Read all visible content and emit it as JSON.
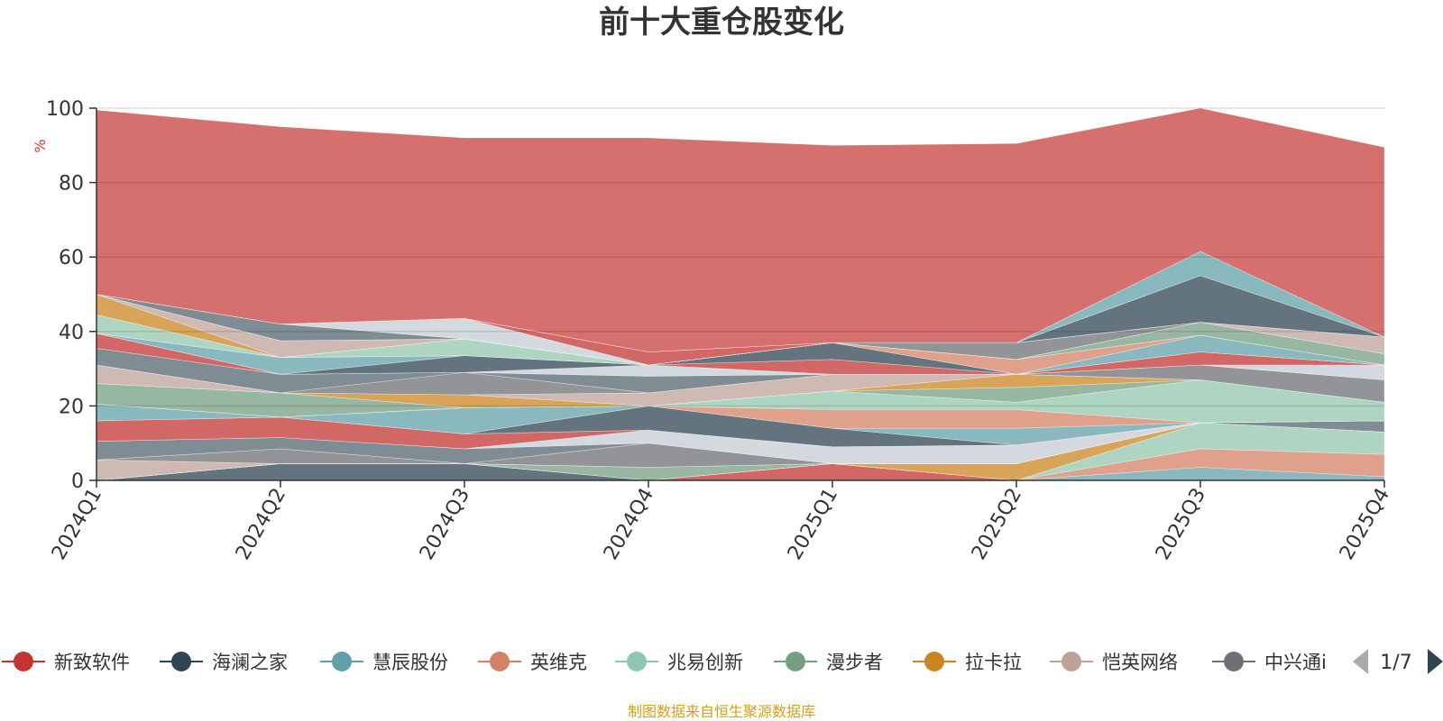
{
  "chart_data": {
    "type": "area",
    "title": "前十大重仓股变化",
    "ylabel": "%",
    "ylim": [
      0,
      100
    ],
    "yticks": [
      0,
      20,
      40,
      60,
      80,
      100
    ],
    "categories": [
      "2024Q1",
      "2024Q2",
      "2024Q3",
      "2024Q4",
      "2025Q1",
      "2025Q2",
      "2025Q3",
      "2025Q4"
    ],
    "grid": true,
    "legend_position": "bottom",
    "legend_page": "1/7",
    "series": [
      {
        "name": "新致软件",
        "values": [
          0,
          0,
          0,
          0,
          4.5,
          0,
          0,
          0
        ]
      },
      {
        "name": "海澜之家",
        "values": [
          0,
          4.5,
          4.5,
          0,
          0,
          0,
          0,
          0
        ]
      },
      {
        "name": "慧辰股份",
        "values": [
          0,
          0,
          0,
          0,
          0,
          0,
          3.5,
          1
        ]
      },
      {
        "name": "英维克",
        "values": [
          0,
          0,
          0,
          0,
          0,
          0,
          5,
          6
        ]
      },
      {
        "name": "兆易创新",
        "values": [
          0,
          0,
          0,
          0,
          0,
          0,
          7,
          6
        ]
      },
      {
        "name": "漫步者",
        "values": [
          0,
          0,
          0,
          3.5,
          0,
          0,
          0,
          0
        ]
      },
      {
        "name": "拉卡拉",
        "values": [
          0,
          0,
          0,
          0,
          0,
          4.5,
          0,
          0
        ]
      },
      {
        "name": "恺英网络",
        "values": [
          5.5,
          0,
          0,
          0,
          0,
          0,
          0,
          0
        ]
      },
      {
        "name": "中兴通讯",
        "values": [
          0,
          4,
          0,
          6.5,
          0,
          0,
          0,
          0
        ]
      },
      {
        "name": "",
        "values": [
          5,
          3,
          4,
          0,
          0,
          0,
          0,
          3
        ]
      },
      {
        "name": "",
        "values": [
          0,
          0,
          0,
          3.5,
          4.5,
          5,
          0,
          0
        ]
      },
      {
        "name": "",
        "values": [
          5.5,
          5.5,
          4,
          0,
          0,
          0,
          0,
          0
        ]
      },
      {
        "name": "",
        "values": [
          0,
          0,
          0,
          6.5,
          5,
          0,
          0,
          0
        ]
      },
      {
        "name": "",
        "values": [
          4.5,
          0,
          7,
          0,
          0,
          4.5,
          0,
          0
        ]
      },
      {
        "name": "",
        "values": [
          0,
          0,
          0,
          0,
          5,
          5,
          0,
          0
        ]
      },
      {
        "name": "",
        "values": [
          0,
          0,
          0,
          0,
          5,
          2,
          11.5,
          5
        ]
      },
      {
        "name": "",
        "values": [
          5.5,
          6.5,
          0,
          0,
          0,
          4,
          0,
          0
        ]
      },
      {
        "name": "",
        "values": [
          0,
          0,
          3.5,
          0,
          0,
          3.5,
          0,
          0
        ]
      },
      {
        "name": "",
        "values": [
          5,
          0,
          0,
          3.5,
          4.5,
          0,
          0,
          0
        ]
      },
      {
        "name": "",
        "values": [
          0,
          0,
          6,
          0,
          0,
          0,
          4,
          6
        ]
      },
      {
        "name": "",
        "values": [
          4.5,
          5,
          0,
          4.5,
          0,
          0,
          0,
          0
        ]
      },
      {
        "name": "",
        "values": [
          0,
          0,
          0,
          3,
          0,
          0,
          0,
          4
        ]
      },
      {
        "name": "",
        "values": [
          4,
          0,
          0,
          0,
          4,
          0,
          3.5,
          0
        ]
      },
      {
        "name": "",
        "values": [
          0,
          0,
          4.5,
          0,
          4.5,
          0,
          0,
          0
        ]
      },
      {
        "name": "",
        "values": [
          0,
          4.5,
          0,
          0,
          0,
          0,
          4.5,
          0
        ]
      },
      {
        "name": "",
        "values": [
          0,
          0,
          0,
          0,
          0,
          4,
          0,
          0
        ]
      },
      {
        "name": "",
        "values": [
          5,
          0,
          4.5,
          0,
          0,
          0,
          0,
          0
        ]
      },
      {
        "name": "",
        "values": [
          0,
          0,
          0,
          0,
          0,
          0,
          3.5,
          3
        ]
      },
      {
        "name": "",
        "values": [
          5.5,
          0,
          0,
          0,
          0,
          0,
          0,
          0
        ]
      },
      {
        "name": "",
        "values": [
          0,
          4.5,
          0,
          0,
          0,
          0,
          0,
          4.5
        ]
      },
      {
        "name": "",
        "values": [
          0,
          0,
          0,
          0,
          0,
          4.5,
          0,
          0
        ]
      },
      {
        "name": "",
        "values": [
          0,
          4.5,
          0,
          0,
          0,
          0,
          0,
          0
        ]
      },
      {
        "name": "",
        "values": [
          0,
          0,
          5.5,
          0,
          0,
          0,
          0,
          0
        ]
      },
      {
        "name": "",
        "values": [
          0,
          0,
          0,
          3.5,
          0,
          0,
          0,
          0
        ]
      },
      {
        "name": "",
        "values": [
          0,
          0,
          0,
          0,
          0,
          0,
          12.5,
          0
        ]
      },
      {
        "name": "",
        "values": [
          0,
          0,
          0,
          0,
          0,
          0,
          6.5,
          0
        ]
      },
      {
        "name": "",
        "values": [
          49.5,
          53,
          48.5,
          57.5,
          53,
          53.5,
          38.5,
          51
        ]
      }
    ],
    "colors": [
      "#c23531",
      "#2f4554",
      "#61a0a8",
      "#d48265",
      "#91c7ae",
      "#749f83",
      "#ca8622",
      "#bda29a",
      "#6e7074",
      "#546570",
      "#c4ccd3"
    ],
    "last_color": "#d5706e",
    "fill_opacity": 0.75
  },
  "legend_items": [
    "新致软件",
    "海澜之家",
    "慧辰股份",
    "英维克",
    "兆易创新",
    "漫步者",
    "拉卡拉",
    "恺英网络",
    "中兴通讯"
  ],
  "legend_truncated_last": "中兴通i",
  "footer": "制图数据来自恒生聚源数据库"
}
